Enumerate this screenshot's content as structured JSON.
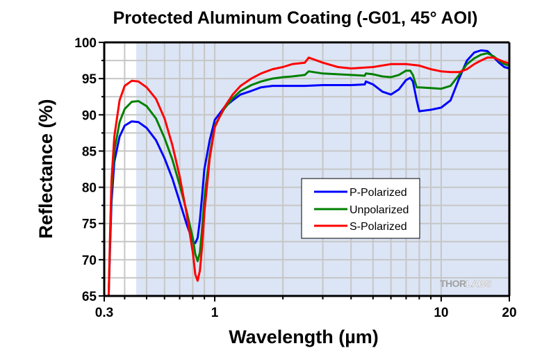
{
  "chart_data": {
    "type": "line",
    "title": "Protected Aluminum Coating (-G01, 45° AOI)",
    "xlabel": "Wavelength (µm)",
    "ylabel": "Reflectance (%)",
    "xscale": "log",
    "xlim": [
      0.325,
      20
    ],
    "ylim": [
      65,
      100
    ],
    "x_ticks": [
      {
        "value": 0.325,
        "label": "0.3"
      },
      {
        "value": 1,
        "label": "1"
      },
      {
        "value": 10,
        "label": "10"
      },
      {
        "value": 20,
        "label": "20"
      }
    ],
    "x_minor_ticks": [
      0.4,
      0.5,
      0.6,
      0.7,
      0.8,
      0.9,
      2,
      3,
      4,
      5,
      6,
      7,
      8,
      9
    ],
    "y_ticks": [
      65,
      70,
      75,
      80,
      85,
      90,
      95,
      100
    ],
    "y_minor_ticks": [
      67.5,
      72.5,
      77.5,
      82.5,
      87.5,
      92.5,
      97.5
    ],
    "grid": true,
    "shaded_region": {
      "x_start": 0.45,
      "x_end": 20,
      "color": "#dce5f5",
      "meaning": "specified range"
    },
    "legend": {
      "position": "center-right"
    },
    "watermark": {
      "part1": "THOR",
      "part2": "LABS"
    },
    "series": [
      {
        "name": "P-Polarized",
        "color": "#0000ff",
        "x": [
          0.34,
          0.345,
          0.35,
          0.36,
          0.38,
          0.4,
          0.43,
          0.46,
          0.5,
          0.55,
          0.6,
          0.65,
          0.7,
          0.75,
          0.8,
          0.82,
          0.84,
          0.86,
          0.88,
          0.9,
          0.95,
          1.0,
          1.1,
          1.2,
          1.3,
          1.45,
          1.6,
          1.8,
          2.0,
          2.5,
          3.0,
          4.0,
          4.6,
          4.65,
          5.0,
          5.5,
          6.0,
          6.5,
          7.0,
          7.3,
          7.5,
          7.8,
          8.0,
          9.0,
          10.0,
          11.0,
          12.0,
          13.0,
          14.0,
          15.0,
          16.0,
          17.0,
          18.0,
          19.0,
          20.0
        ],
        "y": [
          65,
          72,
          78,
          83.5,
          87,
          88.5,
          89.1,
          89.0,
          88.2,
          86.5,
          84.0,
          81.2,
          78.0,
          75.0,
          72.5,
          72.3,
          73.0,
          75.5,
          79.0,
          82.5,
          86.5,
          89.3,
          91.0,
          92.0,
          92.8,
          93.3,
          93.8,
          94.0,
          94.0,
          94.0,
          94.1,
          94.1,
          94.2,
          94.6,
          94.2,
          93.2,
          92.8,
          93.5,
          94.8,
          95.1,
          94.6,
          92.0,
          90.5,
          90.7,
          91.0,
          92.0,
          95.0,
          97.5,
          98.6,
          98.9,
          98.8,
          98.0,
          97.2,
          96.6,
          96.4
        ]
      },
      {
        "name": "Unpolarized",
        "color": "#008000",
        "x": [
          0.34,
          0.345,
          0.35,
          0.36,
          0.38,
          0.4,
          0.43,
          0.46,
          0.5,
          0.55,
          0.6,
          0.65,
          0.7,
          0.75,
          0.8,
          0.82,
          0.84,
          0.86,
          0.88,
          0.9,
          0.95,
          1.0,
          1.1,
          1.2,
          1.3,
          1.45,
          1.6,
          1.8,
          2.0,
          2.2,
          2.5,
          2.6,
          3.0,
          4.0,
          4.6,
          4.65,
          5.0,
          5.5,
          6.0,
          6.5,
          7.0,
          7.3,
          7.5,
          7.8,
          8.0,
          9.0,
          10.0,
          11.0,
          12.0,
          13.0,
          14.0,
          15.0,
          16.0,
          17.0,
          18.0,
          19.0,
          20.0
        ],
        "y": [
          65,
          73,
          79.5,
          85,
          89,
          90.8,
          91.8,
          91.9,
          91.2,
          89.5,
          86.8,
          83.8,
          80.3,
          76.8,
          73.0,
          70.8,
          69.8,
          71.0,
          74.5,
          78.5,
          84.5,
          88.5,
          90.8,
          92.3,
          93.3,
          94.1,
          94.6,
          95.0,
          95.2,
          95.3,
          95.5,
          96.0,
          95.7,
          95.5,
          95.4,
          95.7,
          95.6,
          95.3,
          95.2,
          95.5,
          96.1,
          96.1,
          95.5,
          93.8,
          93.8,
          93.7,
          93.6,
          94.0,
          95.5,
          97.0,
          97.8,
          98.3,
          98.5,
          98.1,
          97.5,
          97.0,
          96.8
        ]
      },
      {
        "name": "S-Polarized",
        "color": "#ff0000",
        "x": [
          0.34,
          0.345,
          0.35,
          0.36,
          0.38,
          0.4,
          0.43,
          0.46,
          0.5,
          0.55,
          0.6,
          0.65,
          0.7,
          0.75,
          0.8,
          0.82,
          0.84,
          0.86,
          0.88,
          0.9,
          0.95,
          1.0,
          1.1,
          1.2,
          1.3,
          1.45,
          1.6,
          1.8,
          2.0,
          2.2,
          2.5,
          2.6,
          3.0,
          3.5,
          4.0,
          5.0,
          6.0,
          7.0,
          8.0,
          9.0,
          10.0,
          11.0,
          12.0,
          13.0,
          14.0,
          15.0,
          16.0,
          17.0,
          18.0,
          19.0,
          20.0
        ],
        "y": [
          65,
          74,
          81,
          87,
          92,
          94,
          94.7,
          94.6,
          93.8,
          92.2,
          89.5,
          85.8,
          81.5,
          76.5,
          71.0,
          68.0,
          67.1,
          68.5,
          72.0,
          76.5,
          84.0,
          88.3,
          91.0,
          92.8,
          94.0,
          95.0,
          95.7,
          96.3,
          96.6,
          97.0,
          97.2,
          97.9,
          97.2,
          96.6,
          96.4,
          96.6,
          97.0,
          97.0,
          96.8,
          96.3,
          96.0,
          95.9,
          95.9,
          96.3,
          97.0,
          97.5,
          97.9,
          97.9,
          97.6,
          97.3,
          97.1
        ]
      }
    ]
  }
}
